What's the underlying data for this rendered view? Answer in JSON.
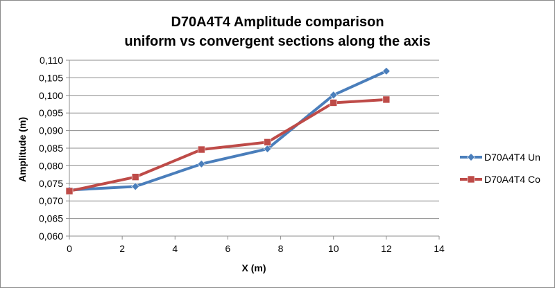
{
  "chart_data": {
    "type": "line",
    "title": [
      "D70A4T4 Amplitude comparison",
      "uniform vs convergent sections along the axis"
    ],
    "xlabel": "X (m)",
    "ylabel": "Amplitude (m)",
    "xlim": [
      0,
      14
    ],
    "ylim": [
      0.06,
      0.11
    ],
    "xticks": [
      "0",
      "2",
      "4",
      "6",
      "8",
      "10",
      "12",
      "14"
    ],
    "yticks": [
      "0,060",
      "0,065",
      "0,070",
      "0,075",
      "0,080",
      "0,085",
      "0,090",
      "0,095",
      "0,100",
      "0,105",
      "0,110"
    ],
    "grid": "horizontal",
    "legend_position": "right",
    "series": [
      {
        "name": "D70A4T4 Un",
        "color": "#4a7ebb",
        "marker": "diamond",
        "x": [
          0,
          2.5,
          5,
          7.5,
          10,
          12
        ],
        "y": [
          0.0731,
          0.0741,
          0.0805,
          0.0848,
          0.1001,
          0.1069
        ]
      },
      {
        "name": "D70A4T4 Co",
        "color": "#be4b48",
        "marker": "square",
        "x": [
          0,
          2.5,
          5,
          7.5,
          10,
          12
        ],
        "y": [
          0.0728,
          0.0768,
          0.0846,
          0.0867,
          0.0979,
          0.0988
        ]
      }
    ]
  }
}
